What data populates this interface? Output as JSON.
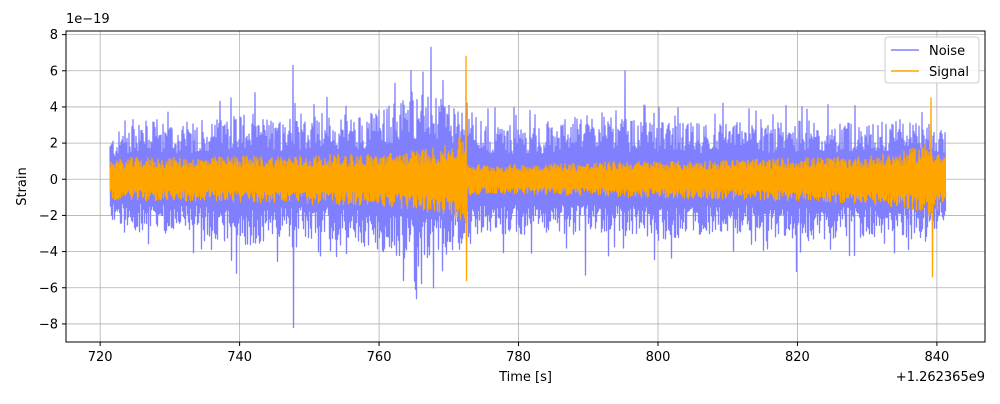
{
  "chart_data": {
    "type": "line",
    "title": "",
    "xlabel": "Time [s]",
    "ylabel": "Strain",
    "y_scale_label": "1e−19",
    "x_offset_label": "+1.262365e9",
    "xlim": [
      715.1,
      846.9
    ],
    "ylim": [
      -9.0,
      8.2
    ],
    "x_ticks": [
      720,
      740,
      760,
      780,
      800,
      820,
      840
    ],
    "y_ticks": [
      -8,
      -6,
      -4,
      -2,
      0,
      2,
      4,
      6,
      8
    ],
    "x_tick_labels": [
      "720",
      "740",
      "760",
      "780",
      "800",
      "820",
      "840"
    ],
    "y_tick_labels": [
      "−8",
      "−6",
      "−4",
      "−2",
      "0",
      "2",
      "4",
      "6",
      "8"
    ],
    "grid": true,
    "legend_position": "top-right",
    "series": [
      {
        "name": "Noise",
        "color": "#8080ff",
        "x_range": [
          721.3,
          841.3
        ],
        "envelope": {
          "x": [
            721.3,
            725,
            730,
            735,
            740,
            745,
            750,
            755,
            760,
            765,
            770,
            772.5,
            775,
            780,
            785,
            790,
            795,
            800,
            805,
            810,
            815,
            820,
            825,
            830,
            835,
            839,
            841.3
          ],
          "upper": [
            2.2,
            3.4,
            3.0,
            3.1,
            3.8,
            3.3,
            3.6,
            3.3,
            3.9,
            4.8,
            4.3,
            4.0,
            3.1,
            3.0,
            3.1,
            3.6,
            3.3,
            3.2,
            3.1,
            3.3,
            3.0,
            3.3,
            3.2,
            3.2,
            3.3,
            3.1,
            2.3
          ],
          "lower": [
            -2.4,
            -2.9,
            -3.0,
            -3.1,
            -3.9,
            -3.4,
            -3.3,
            -3.4,
            -4.2,
            -4.6,
            -3.9,
            -3.9,
            -3.0,
            -3.1,
            -3.0,
            -3.1,
            -3.2,
            -3.4,
            -3.1,
            -3.0,
            -3.1,
            -3.5,
            -3.3,
            -3.2,
            -3.4,
            -3.3,
            -2.0
          ]
        },
        "peaks": [
          {
            "x": 738.8,
            "y": 4.5
          },
          {
            "x": 739.5,
            "y": -5.2
          },
          {
            "x": 747.6,
            "y": 6.3
          },
          {
            "x": 747.7,
            "y": -8.2
          },
          {
            "x": 762.3,
            "y": 5.3
          },
          {
            "x": 763.5,
            "y": -5.6
          },
          {
            "x": 765.3,
            "y": -6.6
          },
          {
            "x": 767.5,
            "y": 7.3
          },
          {
            "x": 767.8,
            "y": -6.0
          },
          {
            "x": 795.2,
            "y": 6.0
          },
          {
            "x": 789.5,
            "y": -5.3
          },
          {
            "x": 819.8,
            "y": -5.1
          }
        ]
      },
      {
        "name": "Signal",
        "color": "#ffa500",
        "x_range": [
          721.3,
          841.3
        ],
        "envelope": {
          "x": [
            721.3,
            725,
            730,
            735,
            740,
            745,
            750,
            755,
            760,
            765,
            770,
            772.3,
            772.6,
            775,
            780,
            785,
            790,
            795,
            800,
            805,
            810,
            815,
            820,
            825,
            830,
            835,
            839,
            841.3
          ],
          "upper": [
            1.1,
            1.2,
            1.2,
            1.2,
            1.3,
            1.3,
            1.3,
            1.4,
            1.4,
            1.6,
            1.9,
            2.5,
            0.9,
            0.8,
            0.8,
            0.9,
            0.9,
            1.0,
            1.0,
            1.0,
            1.1,
            1.1,
            1.2,
            1.2,
            1.3,
            1.5,
            2.1,
            1.2
          ],
          "lower": [
            -1.1,
            -1.2,
            -1.2,
            -1.2,
            -1.3,
            -1.3,
            -1.4,
            -1.4,
            -1.5,
            -1.7,
            -2.0,
            -2.6,
            -0.9,
            -0.8,
            -0.8,
            -0.9,
            -0.9,
            -1.0,
            -1.0,
            -1.1,
            -1.1,
            -1.2,
            -1.2,
            -1.3,
            -1.4,
            -1.6,
            -2.1,
            -1.2
          ]
        },
        "peaks": [
          {
            "x": 772.4,
            "y": 6.8
          },
          {
            "x": 772.5,
            "y": -5.6
          },
          {
            "x": 839.2,
            "y": 4.5
          },
          {
            "x": 839.3,
            "y": -5.4
          }
        ]
      }
    ]
  }
}
